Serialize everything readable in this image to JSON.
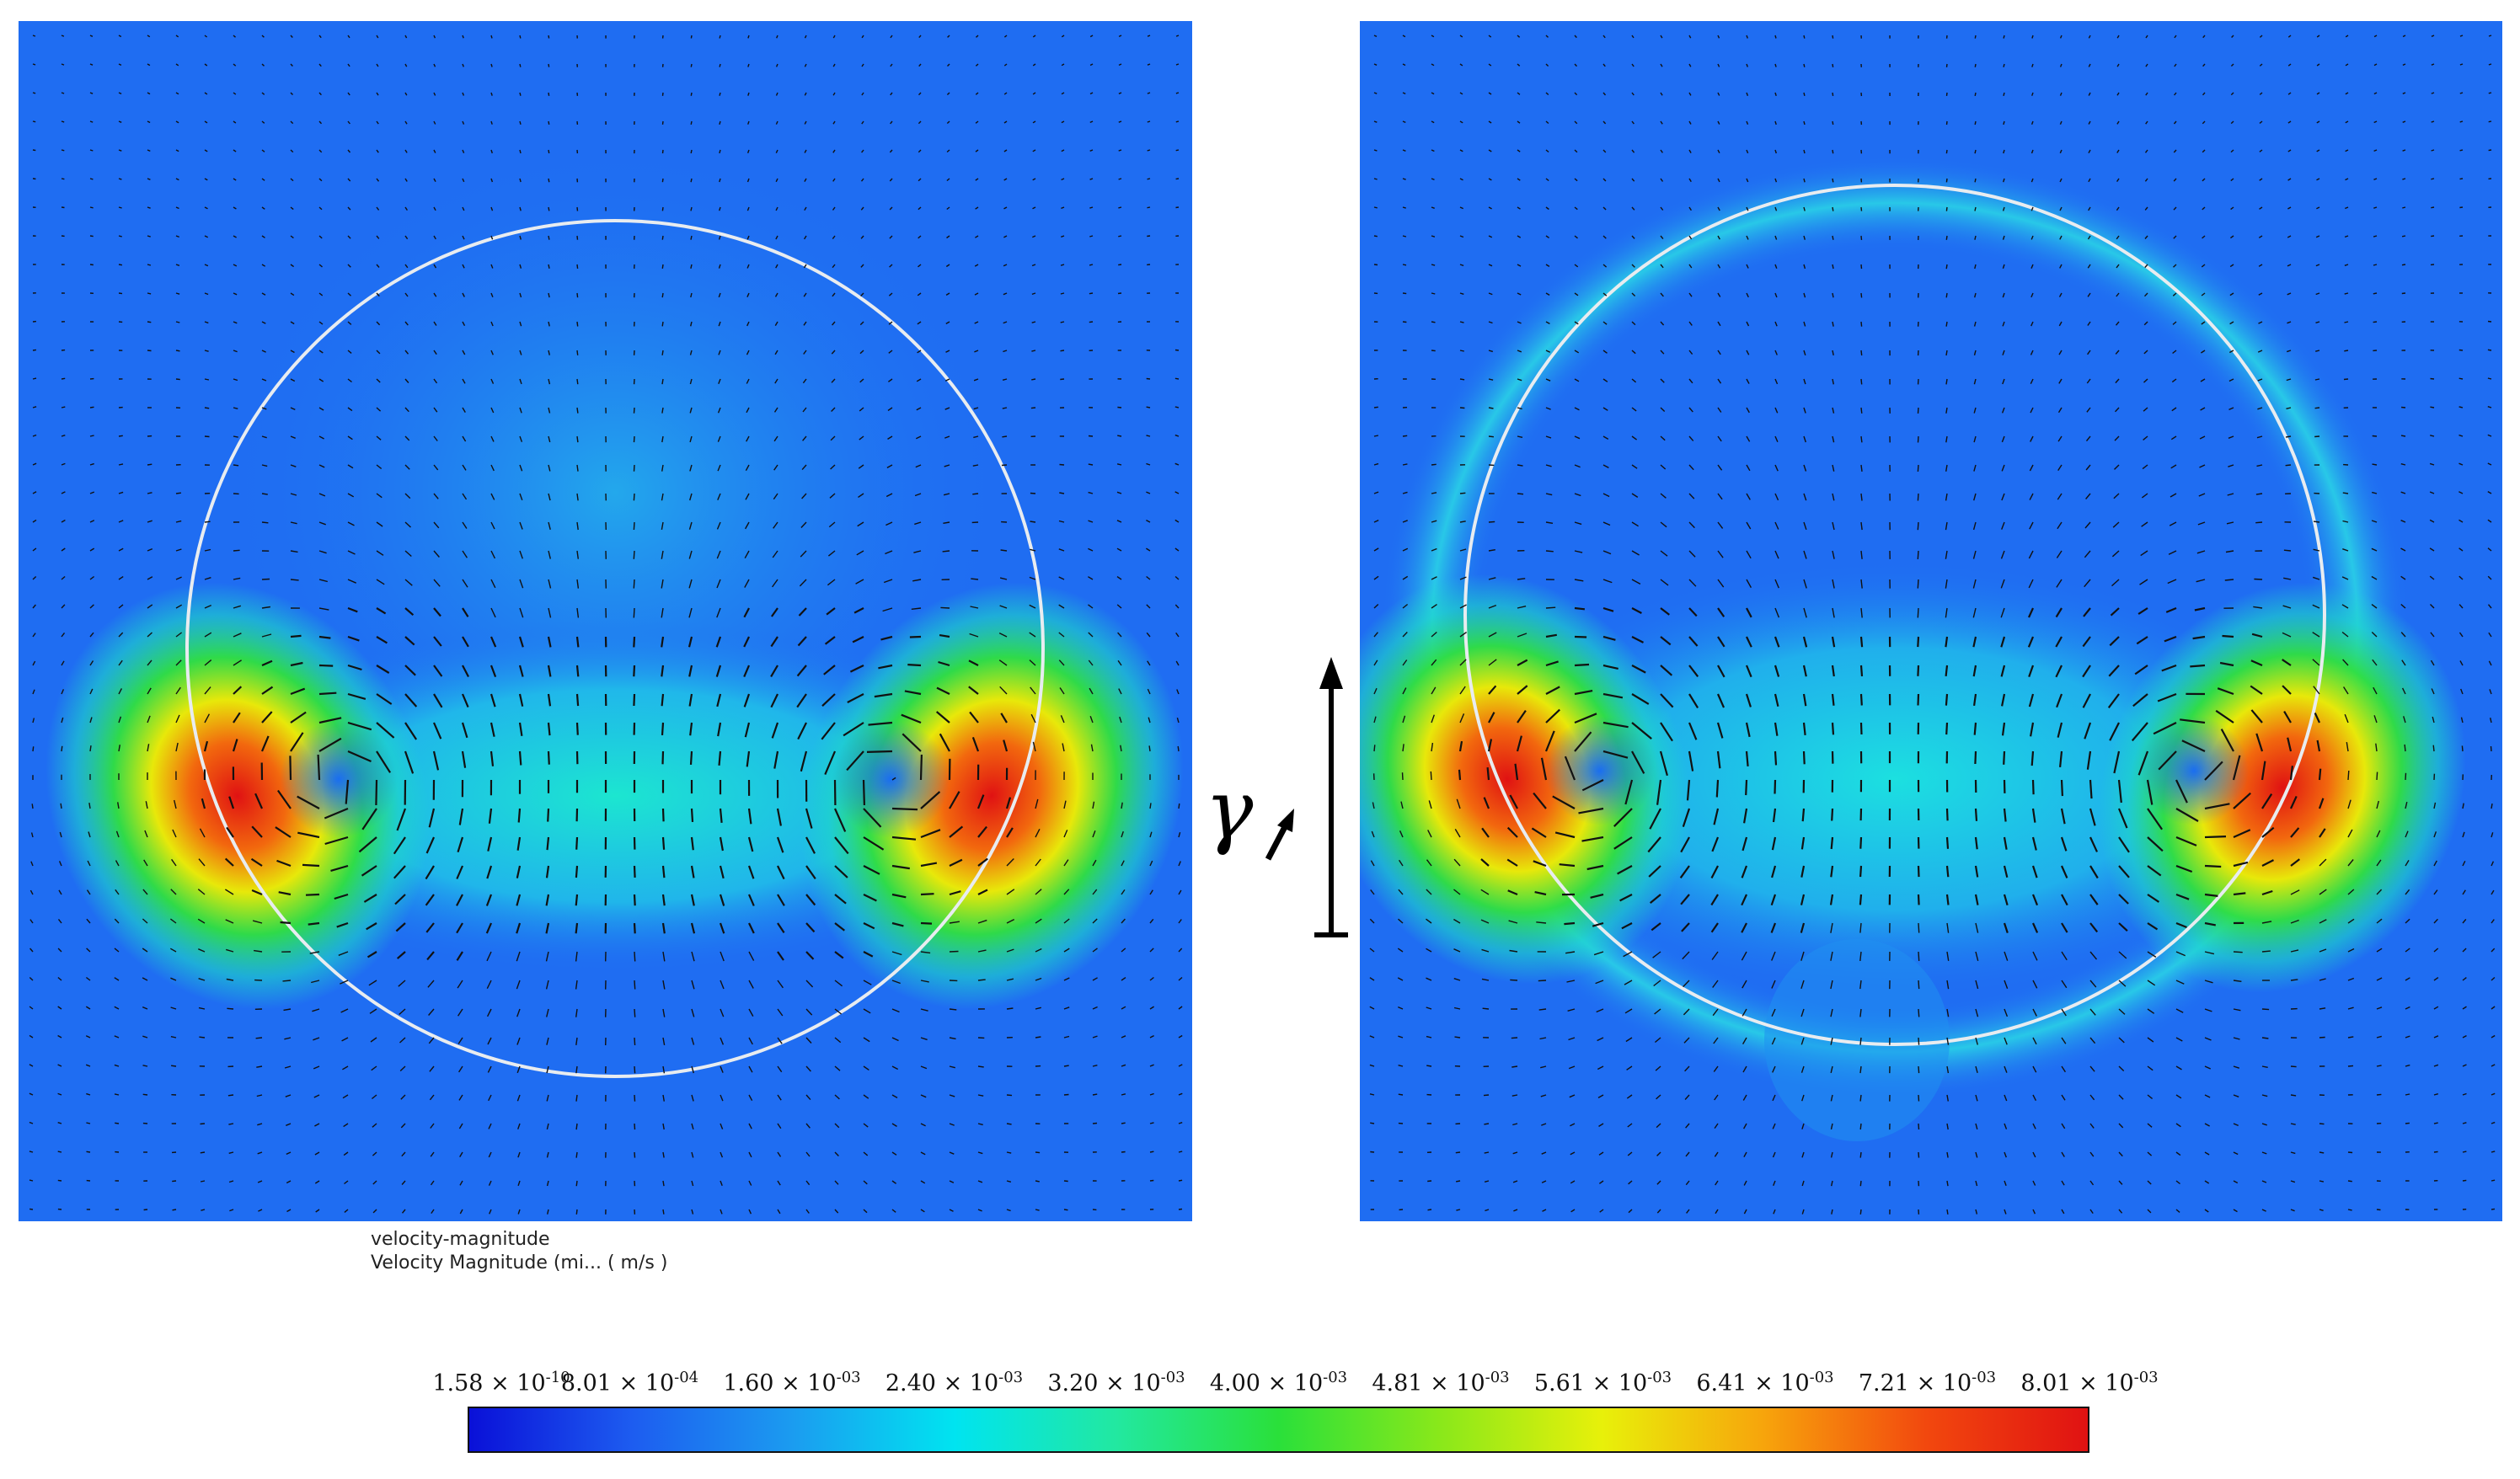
{
  "legend": {
    "variable": "velocity-magnitude",
    "description": "Velocity Magnitude (mi... ( m/s )"
  },
  "annotation": {
    "symbol": "γ"
  },
  "colorbar": {
    "ticks": [
      {
        "mantissa": "1.58",
        "exp": "-10"
      },
      {
        "mantissa": "8.01",
        "exp": "-04"
      },
      {
        "mantissa": "1.60",
        "exp": "-03"
      },
      {
        "mantissa": "2.40",
        "exp": "-03"
      },
      {
        "mantissa": "3.20",
        "exp": "-03"
      },
      {
        "mantissa": "4.00",
        "exp": "-03"
      },
      {
        "mantissa": "4.81",
        "exp": "-03"
      },
      {
        "mantissa": "5.61",
        "exp": "-03"
      },
      {
        "mantissa": "6.41",
        "exp": "-03"
      },
      {
        "mantissa": "7.21",
        "exp": "-03"
      },
      {
        "mantissa": "8.01",
        "exp": "-03"
      }
    ],
    "colors": [
      "#0a10d8",
      "#1d5cf0",
      "#1b9cf0",
      "#00e4f0",
      "#22e8a0",
      "#2ae03a",
      "#8ae81a",
      "#e8f00a",
      "#f7a40c",
      "#f2480e",
      "#e01212"
    ]
  },
  "colors": {
    "background_field": "#1f6df2",
    "interface_line": "#e8ecf0",
    "vector_arrow": "#111111"
  }
}
